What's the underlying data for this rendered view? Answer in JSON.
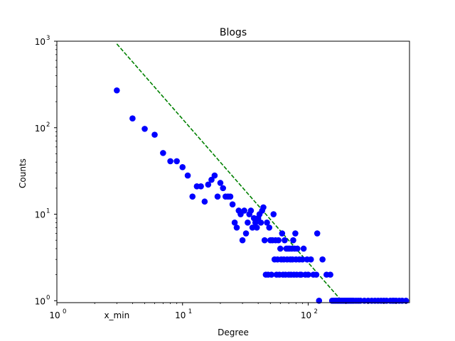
{
  "chart_data": {
    "type": "scatter",
    "title": "Blogs",
    "xlabel": "Degree",
    "ylabel": "Counts",
    "xscale": "log",
    "yscale": "log",
    "xlim": [
      1,
      640
    ],
    "ylim": [
      0.95,
      1000
    ],
    "grid": false,
    "xticks": [
      {
        "value": 1,
        "base": "10",
        "exp": "0"
      },
      {
        "value": 10,
        "base": "10",
        "exp": "1"
      },
      {
        "value": 100,
        "base": "10",
        "exp": "2"
      }
    ],
    "yticks": [
      {
        "value": 1,
        "base": "10",
        "exp": "0"
      },
      {
        "value": 10,
        "base": "10",
        "exp": "1"
      },
      {
        "value": 100,
        "base": "10",
        "exp": "2"
      },
      {
        "value": 1000,
        "base": "10",
        "exp": "3"
      }
    ],
    "annotations": [
      {
        "text": "x_min",
        "x": 3.0
      }
    ],
    "series": [
      {
        "marker": "circle",
        "color": "#0000ff",
        "points": [
          [
            3,
            270
          ],
          [
            4,
            128
          ],
          [
            5,
            97
          ],
          [
            6,
            83
          ],
          [
            7,
            51
          ],
          [
            8,
            41
          ],
          [
            9,
            41
          ],
          [
            10,
            35
          ],
          [
            11,
            28
          ],
          [
            12,
            16
          ],
          [
            13,
            21
          ],
          [
            14,
            21
          ],
          [
            15,
            14
          ],
          [
            16,
            22
          ],
          [
            17,
            25
          ],
          [
            18,
            28
          ],
          [
            19,
            16
          ],
          [
            20,
            23
          ],
          [
            21,
            20
          ],
          [
            22,
            16
          ],
          [
            23,
            16
          ],
          [
            24,
            16
          ],
          [
            25,
            13
          ],
          [
            26,
            8
          ],
          [
            27,
            7
          ],
          [
            28,
            11
          ],
          [
            29,
            10
          ],
          [
            30,
            5
          ],
          [
            31,
            11
          ],
          [
            32,
            6
          ],
          [
            33,
            8
          ],
          [
            34,
            10
          ],
          [
            35,
            11
          ],
          [
            36,
            7
          ],
          [
            37,
            9
          ],
          [
            38,
            8
          ],
          [
            39,
            7
          ],
          [
            40,
            9
          ],
          [
            41,
            10
          ],
          [
            42,
            8
          ],
          [
            43,
            11
          ],
          [
            44,
            12
          ],
          [
            45,
            5
          ],
          [
            46,
            2
          ],
          [
            47,
            8
          ],
          [
            48,
            2
          ],
          [
            49,
            7
          ],
          [
            50,
            5
          ],
          [
            51,
            2
          ],
          [
            52,
            5
          ],
          [
            53,
            10
          ],
          [
            54,
            3
          ],
          [
            55,
            5
          ],
          [
            56,
            2
          ],
          [
            57,
            3
          ],
          [
            58,
            5
          ],
          [
            59,
            2
          ],
          [
            60,
            4
          ],
          [
            61,
            3
          ],
          [
            62,
            6
          ],
          [
            63,
            2
          ],
          [
            64,
            3
          ],
          [
            65,
            5
          ],
          [
            66,
            2
          ],
          [
            67,
            4
          ],
          [
            68,
            3
          ],
          [
            69,
            4
          ],
          [
            70,
            2
          ],
          [
            71,
            4
          ],
          [
            72,
            3
          ],
          [
            73,
            2
          ],
          [
            74,
            4
          ],
          [
            75,
            3
          ],
          [
            76,
            5
          ],
          [
            77,
            2
          ],
          [
            78,
            4
          ],
          [
            79,
            6
          ],
          [
            80,
            3
          ],
          [
            81,
            2
          ],
          [
            82,
            4
          ],
          [
            85,
            3
          ],
          [
            86,
            2
          ],
          [
            88,
            2
          ],
          [
            90,
            3
          ],
          [
            92,
            4
          ],
          [
            95,
            2
          ],
          [
            98,
            3
          ],
          [
            100,
            2
          ],
          [
            105,
            3
          ],
          [
            110,
            2
          ],
          [
            116,
            2
          ],
          [
            118,
            6
          ],
          [
            122,
            1
          ],
          [
            130,
            3
          ],
          [
            140,
            2
          ],
          [
            150,
            2
          ],
          [
            155,
            1
          ],
          [
            160,
            1
          ],
          [
            165,
            1
          ],
          [
            170,
            1
          ],
          [
            175,
            1
          ],
          [
            180,
            1
          ],
          [
            185,
            1
          ],
          [
            190,
            1
          ],
          [
            195,
            1
          ],
          [
            200,
            1
          ],
          [
            205,
            1
          ],
          [
            210,
            1
          ],
          [
            215,
            1
          ],
          [
            220,
            1
          ],
          [
            225,
            1
          ],
          [
            230,
            1
          ],
          [
            240,
            1
          ],
          [
            250,
            1
          ],
          [
            260,
            1
          ],
          [
            280,
            1
          ],
          [
            300,
            1
          ],
          [
            320,
            1
          ],
          [
            340,
            1
          ],
          [
            360,
            1
          ],
          [
            380,
            1
          ],
          [
            400,
            1
          ],
          [
            420,
            1
          ],
          [
            450,
            1
          ],
          [
            470,
            1
          ],
          [
            480,
            1
          ],
          [
            500,
            1
          ],
          [
            530,
            1
          ],
          [
            560,
            1
          ],
          [
            600,
            1
          ]
        ]
      }
    ],
    "fit_line": {
      "style": "dashed",
      "color": "#008000",
      "from": [
        3,
        930
      ],
      "to": [
        190,
        0.95
      ]
    }
  }
}
